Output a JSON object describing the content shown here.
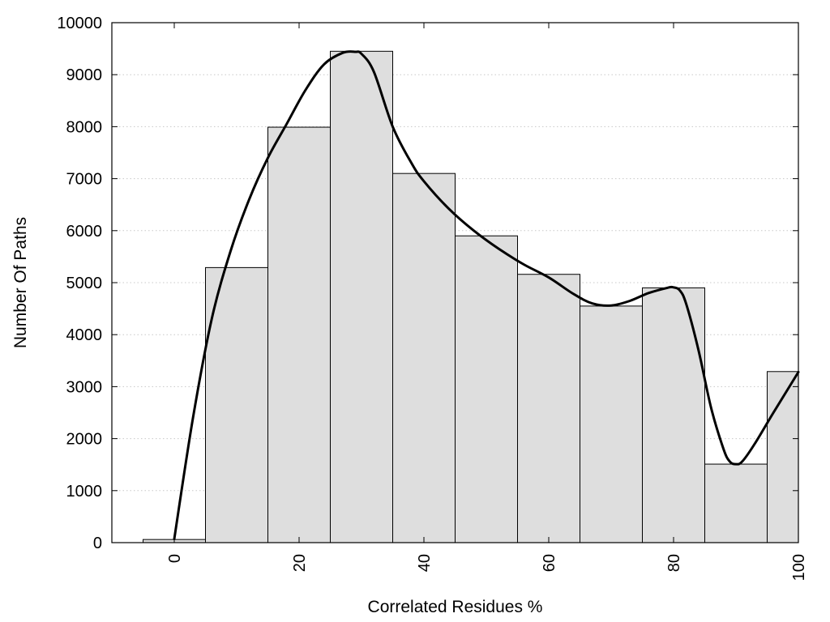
{
  "chart_data": {
    "type": "bar",
    "xlabel": "Correlated Residues %",
    "ylabel": "Number Of Paths",
    "xlim": [
      -10,
      100
    ],
    "ylim": [
      0,
      10000
    ],
    "x_ticks": [
      "0",
      "20",
      "40",
      "60",
      "80",
      "100"
    ],
    "y_ticks": [
      "0",
      "1000",
      "2000",
      "3000",
      "4000",
      "5000",
      "6000",
      "7000",
      "8000",
      "9000",
      "10000"
    ],
    "grid": "horizontal-dotted",
    "bar_color": "#dedede",
    "line_color": "#000000",
    "bin_width": 10,
    "bins": [
      {
        "center": 0,
        "value": 60
      },
      {
        "center": 10,
        "value": 5290
      },
      {
        "center": 20,
        "value": 7990
      },
      {
        "center": 30,
        "value": 9450
      },
      {
        "center": 40,
        "value": 7100
      },
      {
        "center": 50,
        "value": 5900
      },
      {
        "center": 60,
        "value": 5160
      },
      {
        "center": 70,
        "value": 4550
      },
      {
        "center": 80,
        "value": 4900
      },
      {
        "center": 90,
        "value": 1510
      },
      {
        "center": 100,
        "value": 3290
      }
    ],
    "series": [
      {
        "type": "line",
        "x": [
          0,
          3,
          6,
          9,
          12,
          15,
          18,
          21,
          24,
          27,
          29,
          30,
          32,
          35,
          38,
          40,
          44,
          48,
          52,
          56,
          60,
          64,
          67,
          70,
          73,
          76,
          79,
          80,
          81,
          82,
          84,
          86,
          88,
          89,
          90,
          91,
          93,
          96,
          100
        ],
        "y": [
          70,
          2400,
          4300,
          5600,
          6600,
          7400,
          8050,
          8700,
          9200,
          9420,
          9440,
          9400,
          9050,
          8000,
          7300,
          6950,
          6420,
          6000,
          5650,
          5350,
          5100,
          4780,
          4600,
          4560,
          4650,
          4800,
          4900,
          4910,
          4850,
          4600,
          3700,
          2600,
          1800,
          1560,
          1510,
          1560,
          1900,
          2500,
          3280
        ]
      }
    ]
  }
}
